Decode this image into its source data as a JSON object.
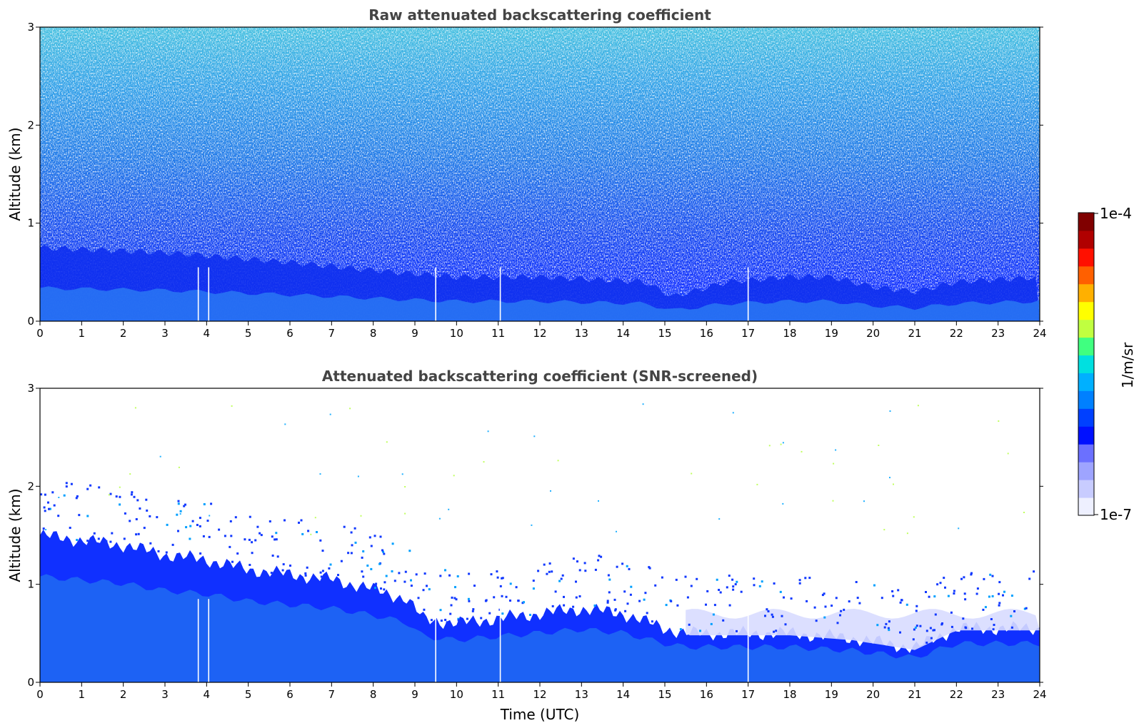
{
  "chart_data": [
    {
      "type": "heatmap",
      "title": "Raw attenuated backscattering coefficient",
      "xlabel": "",
      "ylabel": "Altitude (km)",
      "xlim": [
        0,
        24
      ],
      "ylim": [
        0,
        3
      ],
      "x_ticks": [
        "0",
        "1",
        "2",
        "3",
        "4",
        "5",
        "6",
        "7",
        "8",
        "9",
        "10",
        "11",
        "12",
        "13",
        "14",
        "15",
        "16",
        "17",
        "18",
        "19",
        "20",
        "21",
        "22",
        "23",
        "24"
      ],
      "y_ticks": [
        "0",
        "1",
        "2",
        "3"
      ],
      "gaps_utc": [
        3.8,
        4.05,
        9.5,
        11.05,
        17.0
      ],
      "boundary_layer_top_km": [
        {
          "x": 0,
          "y": 0.75
        },
        {
          "x": 3,
          "y": 0.7
        },
        {
          "x": 6,
          "y": 0.6
        },
        {
          "x": 8.5,
          "y": 0.5
        },
        {
          "x": 10,
          "y": 0.45
        },
        {
          "x": 12,
          "y": 0.45
        },
        {
          "x": 14.5,
          "y": 0.4
        },
        {
          "x": 15.2,
          "y": 0.25
        },
        {
          "x": 16.5,
          "y": 0.4
        },
        {
          "x": 18,
          "y": 0.45
        },
        {
          "x": 19,
          "y": 0.45
        },
        {
          "x": 20,
          "y": 0.35
        },
        {
          "x": 21,
          "y": 0.3
        },
        {
          "x": 22,
          "y": 0.4
        },
        {
          "x": 24,
          "y": 0.45
        }
      ]
    },
    {
      "type": "heatmap",
      "title": "Attenuated backscattering coefficient (SNR-screened)",
      "xlabel": "Time (UTC)",
      "ylabel": "Altitude (km)",
      "xlim": [
        0,
        24
      ],
      "ylim": [
        0,
        3
      ],
      "x_ticks": [
        "0",
        "1",
        "2",
        "3",
        "4",
        "5",
        "6",
        "7",
        "8",
        "9",
        "10",
        "11",
        "12",
        "13",
        "14",
        "15",
        "16",
        "17",
        "18",
        "19",
        "20",
        "21",
        "22",
        "23",
        "24"
      ],
      "y_ticks": [
        "0",
        "1",
        "2",
        "3"
      ],
      "gaps_utc": [
        3.8,
        4.05,
        9.5,
        11.05,
        17.0
      ],
      "aerosol_layer_top_km": [
        {
          "x": 0,
          "y": 1.5
        },
        {
          "x": 1,
          "y": 1.45
        },
        {
          "x": 2,
          "y": 1.4
        },
        {
          "x": 3,
          "y": 1.3
        },
        {
          "x": 4,
          "y": 1.25
        },
        {
          "x": 5,
          "y": 1.15
        },
        {
          "x": 6,
          "y": 1.1
        },
        {
          "x": 7,
          "y": 1.05
        },
        {
          "x": 8,
          "y": 0.95
        },
        {
          "x": 8.8,
          "y": 0.85
        },
        {
          "x": 9.2,
          "y": 0.65
        },
        {
          "x": 10,
          "y": 0.6
        },
        {
          "x": 12,
          "y": 0.7
        },
        {
          "x": 13,
          "y": 0.75
        },
        {
          "x": 14,
          "y": 0.7
        },
        {
          "x": 15,
          "y": 0.55
        },
        {
          "x": 15.5,
          "y": 0.5
        },
        {
          "x": 17,
          "y": 0.5
        },
        {
          "x": 18,
          "y": 0.5
        },
        {
          "x": 19.5,
          "y": 0.45
        },
        {
          "x": 21,
          "y": 0.35
        },
        {
          "x": 22,
          "y": 0.55
        },
        {
          "x": 24,
          "y": 0.55
        }
      ]
    }
  ],
  "colorbar": {
    "label": "1/m/sr",
    "max_label": "1e-4",
    "min_label": "1e-7",
    "colors": [
      "#eef0ff",
      "#c8ccff",
      "#9ea4ff",
      "#6b70ff",
      "#0010ff",
      "#0040ff",
      "#0080ff",
      "#00b0ff",
      "#00e0e0",
      "#40ff80",
      "#c0ff40",
      "#ffff00",
      "#ffb000",
      "#ff6000",
      "#ff1000",
      "#b00000",
      "#800000"
    ]
  }
}
